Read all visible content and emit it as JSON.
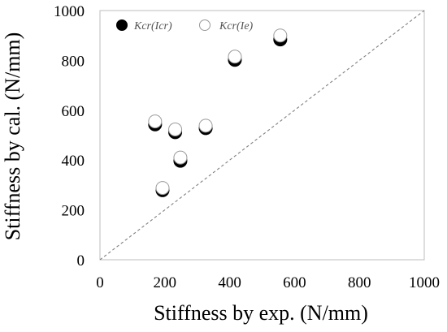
{
  "chart_data": {
    "type": "scatter",
    "xlabel": "Stiffness by exp. (N/mm)",
    "ylabel": "Stiffness by cal. (N/mm)",
    "xlim": [
      0,
      1000
    ],
    "ylim": [
      0,
      1000
    ],
    "xticks": [
      "0",
      "200",
      "400",
      "600",
      "800",
      "1000"
    ],
    "yticks": [
      "0",
      "200",
      "400",
      "600",
      "800",
      "1000"
    ],
    "grid": false,
    "legend_position": "top-left",
    "reference_line": {
      "style": "dashed",
      "from": [
        0,
        0
      ],
      "to": [
        1000,
        1000
      ]
    },
    "series": [
      {
        "name": "Kcr(Icr)",
        "marker": "filled-circle",
        "color": "#000000",
        "x": [
          170,
          193,
          232,
          248,
          326,
          416,
          556
        ],
        "y": [
          543,
          279,
          512,
          397,
          528,
          802,
          884
        ]
      },
      {
        "name": "Kcr(Ie)",
        "marker": "open-circle",
        "color": "#ffffff",
        "x": [
          170,
          193,
          232,
          248,
          326,
          416,
          556
        ],
        "y": [
          555,
          288,
          523,
          410,
          538,
          815,
          900
        ]
      }
    ]
  }
}
